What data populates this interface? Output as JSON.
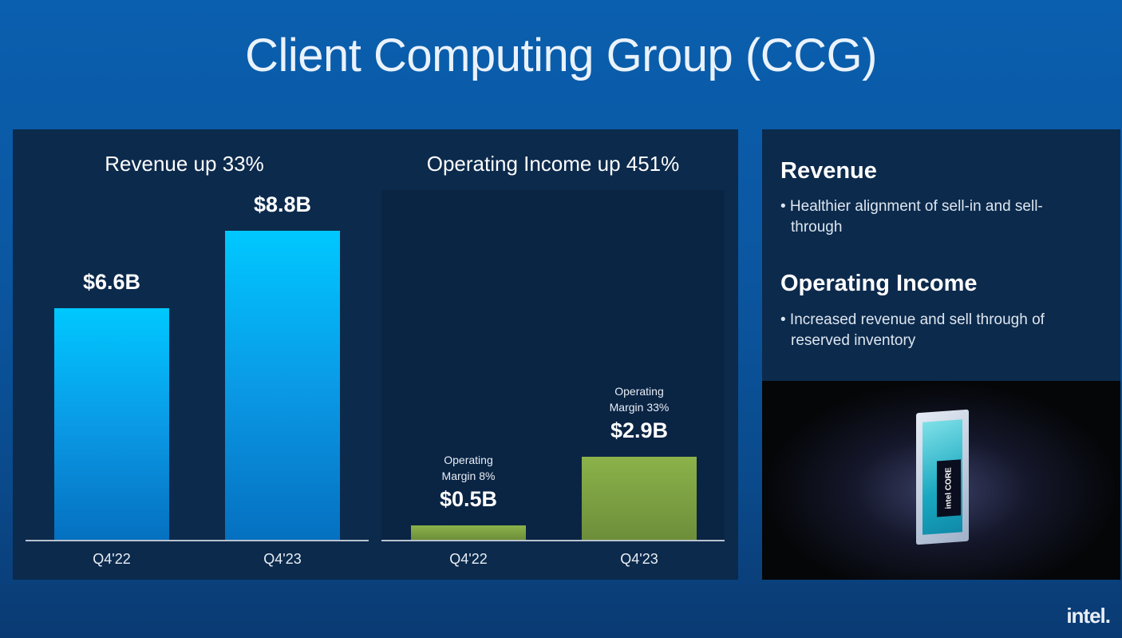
{
  "title": "Client Computing Group (CCG)",
  "chart_data": [
    {
      "type": "bar",
      "title": "Revenue up 33%",
      "categories": [
        "Q4'22",
        "Q4'23"
      ],
      "values": [
        6.6,
        8.8
      ],
      "labels": [
        "$6.6B",
        "$8.8B"
      ],
      "unit": "$B",
      "colors": [
        "#00c8ff",
        "#0570c0"
      ]
    },
    {
      "type": "bar",
      "title": "Operating Income up 451%",
      "categories": [
        "Q4'22",
        "Q4'23"
      ],
      "values": [
        0.5,
        2.9
      ],
      "labels": [
        "$0.5B",
        "$2.9B"
      ],
      "notes": [
        [
          "Operating",
          "Margin 8%"
        ],
        [
          "Operating",
          "Margin 33%"
        ]
      ],
      "unit": "$B",
      "colors": [
        "#8bb24a",
        "#6d8e3a"
      ]
    }
  ],
  "right": {
    "revenue_heading": "Revenue",
    "revenue_bullet": "• Healthier alignment of sell-in and sell-through",
    "oi_heading": "Operating Income",
    "oi_bullet": "• Increased revenue and sell through of reserved inventory",
    "chip_label": "intel CORE"
  },
  "logo": "intel."
}
